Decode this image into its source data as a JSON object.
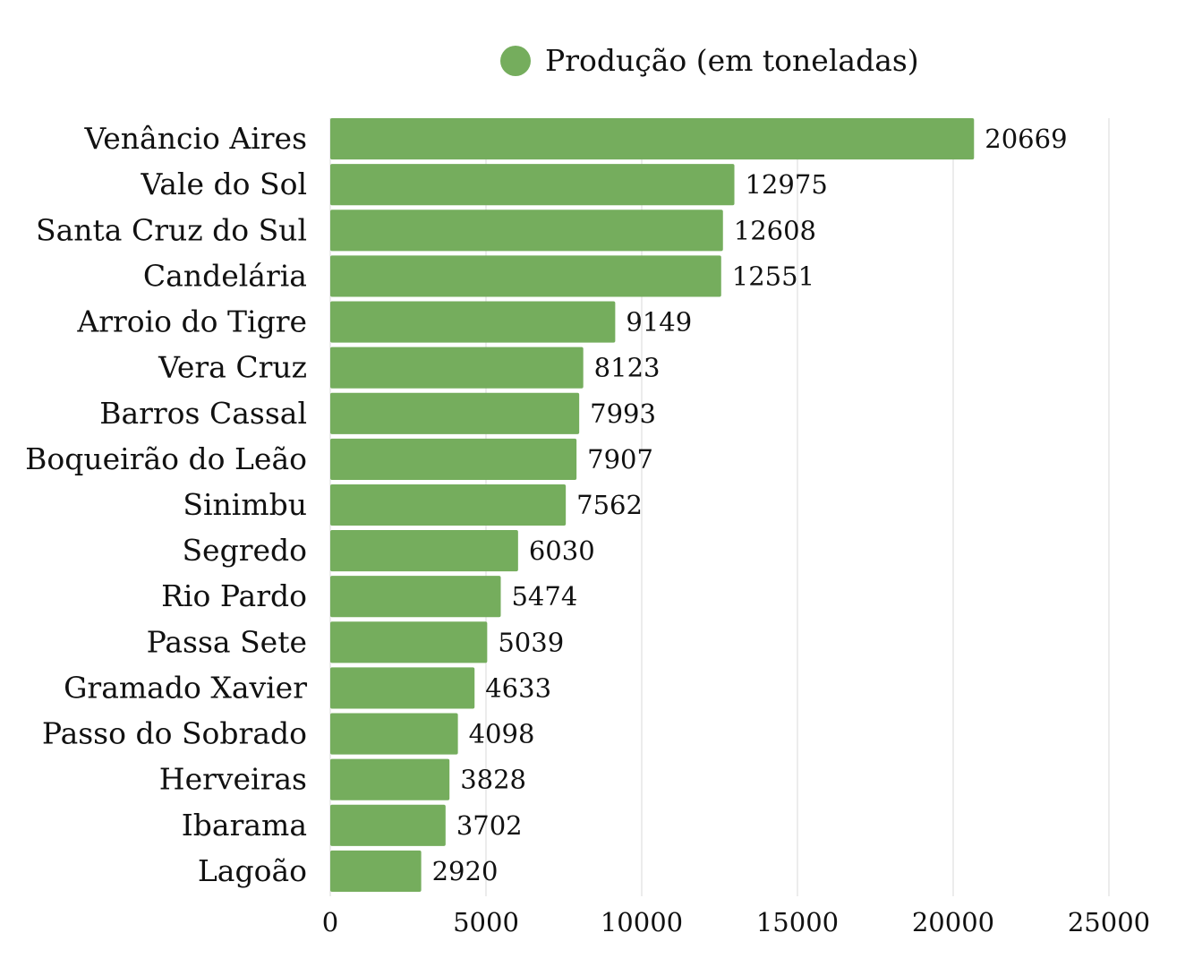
{
  "chart_data": {
    "type": "bar",
    "orientation": "horizontal",
    "title": "",
    "xlabel": "",
    "ylabel": "",
    "legend": {
      "position": "top",
      "entries": [
        "Produção (em toneladas)"
      ]
    },
    "categories": [
      "Venâncio Aires",
      "Vale do Sol",
      "Santa Cruz do Sul",
      "Candelária",
      "Arroio do Tigre",
      "Vera Cruz",
      "Barros Cassal",
      "Boqueirão do Leão",
      "Sinimbu",
      "Segredo",
      "Rio Pardo",
      "Passa Sete",
      "Gramado Xavier",
      "Passo do Sobrado",
      "Herveiras",
      "Ibarama",
      "Lagoão"
    ],
    "series": [
      {
        "name": "Produção (em toneladas)",
        "color": "#75ad5d",
        "values": [
          20669,
          12975,
          12608,
          12551,
          9149,
          8123,
          7993,
          7907,
          7562,
          6030,
          5474,
          5039,
          4633,
          4098,
          3828,
          3702,
          2920
        ]
      }
    ],
    "xlim": [
      0,
      25000
    ],
    "xticks": [
      "0",
      "5000",
      "10000",
      "15000",
      "20000",
      "25000"
    ],
    "grid": true
  }
}
